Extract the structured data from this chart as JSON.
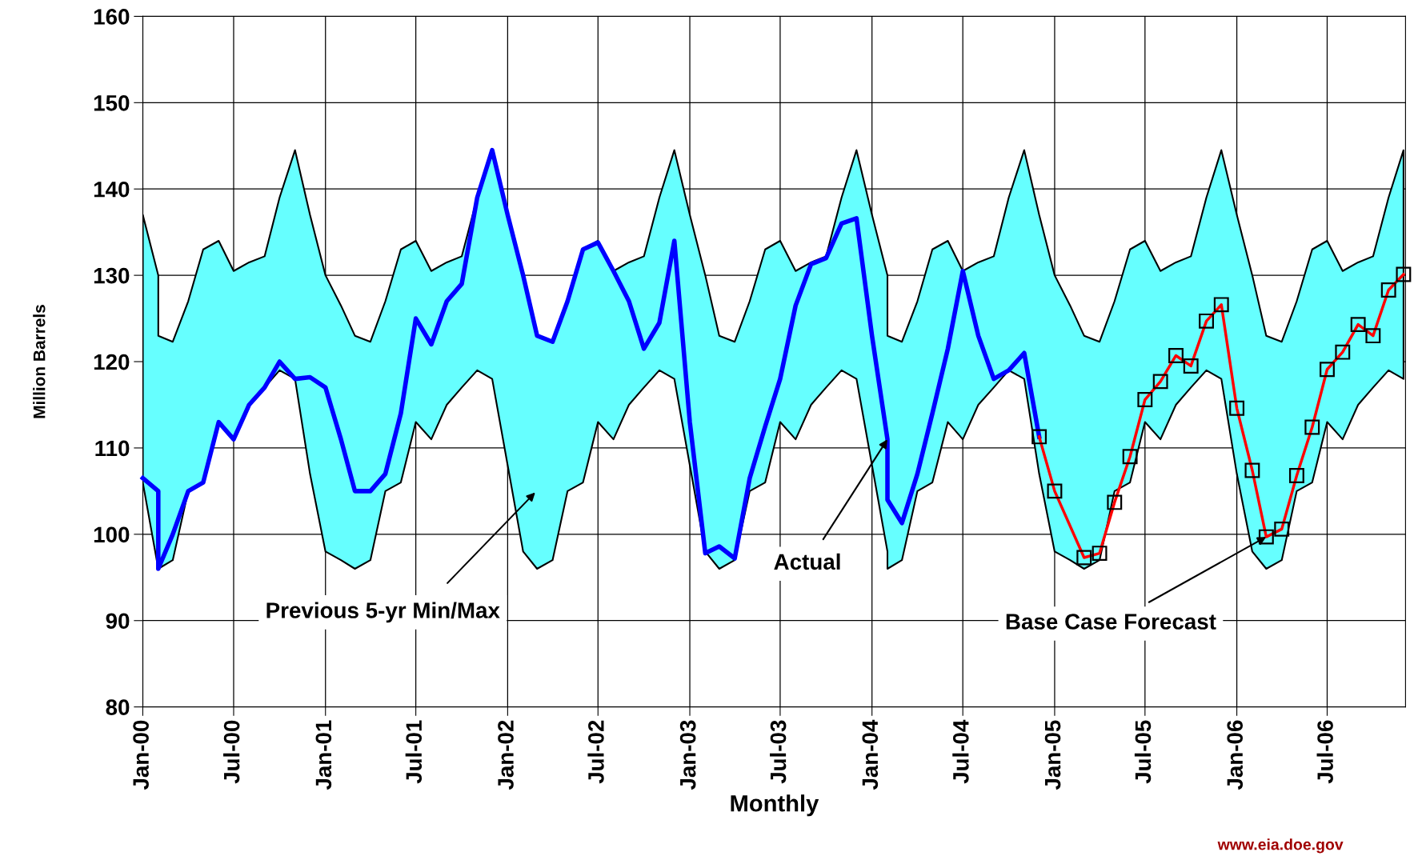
{
  "chart_data": {
    "type": "line",
    "xlabel": "Monthly",
    "ylabel": "Million Barrels",
    "xlim": [
      "2000-01",
      "2006-12-05"
    ],
    "ylim": [
      80,
      160
    ],
    "xticks": [
      {
        "value": "2000-01",
        "label": "Jan-00"
      },
      {
        "value": "2000-07",
        "label": "Jul-00"
      },
      {
        "value": "2001-01",
        "label": "Jan-01"
      },
      {
        "value": "2001-07",
        "label": "Jul-01"
      },
      {
        "value": "2002-01",
        "label": "Jan-02"
      },
      {
        "value": "2002-07",
        "label": "Jul-02"
      },
      {
        "value": "2003-01",
        "label": "Jan-03"
      },
      {
        "value": "2003-07",
        "label": "Jul-03"
      },
      {
        "value": "2004-01",
        "label": "Jan-04"
      },
      {
        "value": "2004-07",
        "label": "Jul-04"
      },
      {
        "value": "2005-01",
        "label": "Jan-05"
      },
      {
        "value": "2005-07",
        "label": "Jul-05"
      },
      {
        "value": "2006-01",
        "label": "Jan-06"
      },
      {
        "value": "2006-07",
        "label": "Jul-06"
      }
    ],
    "yticks": [
      80,
      90,
      100,
      110,
      120,
      130,
      140,
      150,
      160
    ],
    "grid": true,
    "series": [
      {
        "type": "area",
        "color": "#66ffff",
        "x": [
          "2000-01",
          "2000-02",
          "2000-02",
          "2000-03",
          "2000-04",
          "2000-05",
          "2000-06",
          "2000-07",
          "2000-08",
          "2000-09",
          "2000-10",
          "2000-11",
          "2000-12",
          "2001-01",
          "2001-02",
          "2001-03",
          "2001-04",
          "2001-05",
          "2001-06",
          "2001-07",
          "2001-08",
          "2001-09",
          "2001-10",
          "2001-11",
          "2001-12",
          "2002-01",
          "2002-02",
          "2002-03",
          "2002-04",
          "2002-05",
          "2002-06",
          "2002-07",
          "2002-08",
          "2002-09",
          "2002-10",
          "2002-11",
          "2002-12",
          "2003-01",
          "2003-02",
          "2003-03",
          "2003-04",
          "2003-05",
          "2003-06",
          "2003-07",
          "2003-08",
          "2003-09",
          "2003-10",
          "2003-11",
          "2003-12",
          "2004-01",
          "2004-02",
          "2004-02",
          "2004-03",
          "2004-04",
          "2004-05",
          "2004-06",
          "2004-07",
          "2004-08",
          "2004-09",
          "2004-10",
          "2004-11",
          "2004-12",
          "2005-01",
          "2005-02",
          "2005-03",
          "2005-04",
          "2005-05",
          "2005-06",
          "2005-07",
          "2005-08",
          "2005-09",
          "2005-10",
          "2005-11",
          "2005-12",
          "2006-01",
          "2006-02",
          "2006-03",
          "2006-04",
          "2006-05",
          "2006-06",
          "2006-07",
          "2006-08",
          "2006-09",
          "2006-10",
          "2006-11",
          "2006-12"
        ],
        "values": [
          null,
          null,
          null,
          null,
          null,
          null,
          null,
          null,
          null,
          null,
          null,
          null,
          null,
          null,
          null,
          null,
          null,
          null,
          null,
          null,
          null,
          null,
          null,
          null,
          null,
          null,
          null,
          null,
          null,
          null,
          null,
          null,
          null,
          null,
          null,
          null,
          null,
          null,
          null,
          null,
          null,
          null,
          null,
          null,
          null,
          null,
          null,
          null,
          null,
          null,
          null,
          null,
          null,
          null,
          null,
          null,
          null,
          null,
          null,
          null,
          null,
          null,
          null,
          null,
          null,
          null,
          null,
          null,
          null,
          null,
          null,
          null,
          null,
          null,
          null,
          null,
          null,
          null,
          null,
          null,
          null,
          null,
          null,
          null,
          null,
          null
        ],
        "upper": [
          137,
          130,
          123,
          122.3,
          127,
          133,
          134,
          130.5,
          131.5,
          132.2,
          139,
          144.5,
          137,
          130,
          126.5,
          123,
          122.3,
          127,
          133,
          134,
          130.5,
          131.5,
          132.2,
          139,
          144.5,
          137,
          130,
          123,
          122.3,
          127,
          133,
          134,
          130.5,
          131.5,
          132.2,
          139,
          144.5,
          137,
          130,
          123,
          122.3,
          127,
          133,
          134,
          130.5,
          131.5,
          132.2,
          139,
          144.5,
          137,
          130,
          123,
          122.3,
          127,
          133,
          134,
          130.5,
          131.5,
          132.2,
          139,
          144.5,
          137,
          130,
          126.5,
          123,
          122.3,
          127,
          133,
          134,
          130.5,
          131.5,
          132.2,
          139,
          144.5,
          137,
          130,
          123,
          122.3,
          127,
          133,
          134,
          130.5,
          131.5,
          132.2,
          139,
          144.5
        ],
        "lower": [
          106,
          96,
          96,
          97,
          105,
          106,
          113,
          111,
          115,
          117,
          119,
          118,
          107,
          98,
          97,
          96,
          97,
          105,
          106,
          113,
          111,
          115,
          117,
          119,
          118,
          108,
          98,
          96,
          97,
          105,
          106,
          113,
          111,
          115,
          117,
          119,
          118,
          108,
          98,
          96,
          97,
          105,
          106,
          113,
          111,
          115,
          117,
          119,
          118,
          108,
          98,
          96,
          97,
          105,
          106,
          113,
          111,
          115,
          117,
          119,
          118,
          107,
          98,
          97,
          96,
          97,
          105,
          106,
          113,
          111,
          115,
          117,
          119,
          118,
          107,
          98,
          96,
          97,
          105,
          106,
          113,
          111,
          115,
          117,
          119,
          118
        ]
      },
      {
        "color": "#0000ff",
        "marker": "none",
        "x": [
          "2000-01",
          "2000-02",
          "2000-02",
          "2000-03",
          "2000-04",
          "2000-05",
          "2000-06",
          "2000-07",
          "2000-08",
          "2000-09",
          "2000-10",
          "2000-11",
          "2000-12",
          "2001-01",
          "2001-02",
          "2001-03",
          "2001-04",
          "2001-05",
          "2001-06",
          "2001-07",
          "2001-08",
          "2001-09",
          "2001-10",
          "2001-11",
          "2001-12",
          "2002-01",
          "2002-02",
          "2002-03",
          "2002-04",
          "2002-05",
          "2002-06",
          "2002-07",
          "2002-08",
          "2002-09",
          "2002-10",
          "2002-11",
          "2002-12",
          "2003-01",
          "2003-02",
          "2003-03",
          "2003-04",
          "2003-05",
          "2003-06",
          "2003-07",
          "2003-08",
          "2003-09",
          "2003-10",
          "2003-11",
          "2003-12",
          "2004-01",
          "2004-02",
          "2004-02",
          "2004-03",
          "2004-04",
          "2004-05",
          "2004-06",
          "2004-07",
          "2004-08",
          "2004-09",
          "2004-10",
          "2004-11",
          "2004-12"
        ],
        "values": [
          106.5,
          105,
          96,
          100,
          105,
          106,
          113,
          111,
          115,
          117,
          120,
          118,
          118.2,
          117,
          111,
          105,
          105,
          107,
          114,
          125,
          122,
          127,
          129,
          139,
          144.5,
          137,
          130,
          123,
          122.3,
          127,
          133,
          133.8,
          130.5,
          127,
          121.5,
          124.5,
          134,
          113,
          97.8,
          98.6,
          97.2,
          106.5,
          112.5,
          118,
          126.5,
          131.3,
          132,
          136,
          136.6,
          123,
          111,
          104,
          101.3,
          107,
          114,
          121.5,
          130.5,
          123,
          118,
          119,
          121,
          111.3
        ]
      },
      {
        "color": "#ff0000",
        "marker": "square",
        "x": [
          "2004-12",
          "2005-01",
          "2005-03",
          "2005-04",
          "2005-05",
          "2005-06",
          "2005-07",
          "2005-08",
          "2005-09",
          "2005-10",
          "2005-11",
          "2005-12",
          "2006-01",
          "2006-02",
          "2006-03",
          "2006-04",
          "2006-05",
          "2006-06",
          "2006-07",
          "2006-08",
          "2006-09",
          "2006-10",
          "2006-11",
          "2006-12"
        ],
        "values": [
          111.3,
          105.0,
          97.3,
          97.8,
          103.7,
          109.0,
          115.6,
          117.7,
          120.7,
          119.5,
          124.7,
          126.6,
          114.6,
          107.4,
          99.7,
          100.6,
          106.8,
          112.4,
          119.1,
          121.1,
          124.3,
          123.0,
          128.3,
          130.1
        ]
      }
    ],
    "annotations": [
      "Previous 5-yr Min/Max",
      {
        "text": "Actual",
        "x": "2004-02",
        "y": 111
      },
      {
        "text": "Base Case Forecast",
        "x": "2006-03",
        "y": 99.7
      },
      "www.eia.doe.gov"
    ]
  }
}
